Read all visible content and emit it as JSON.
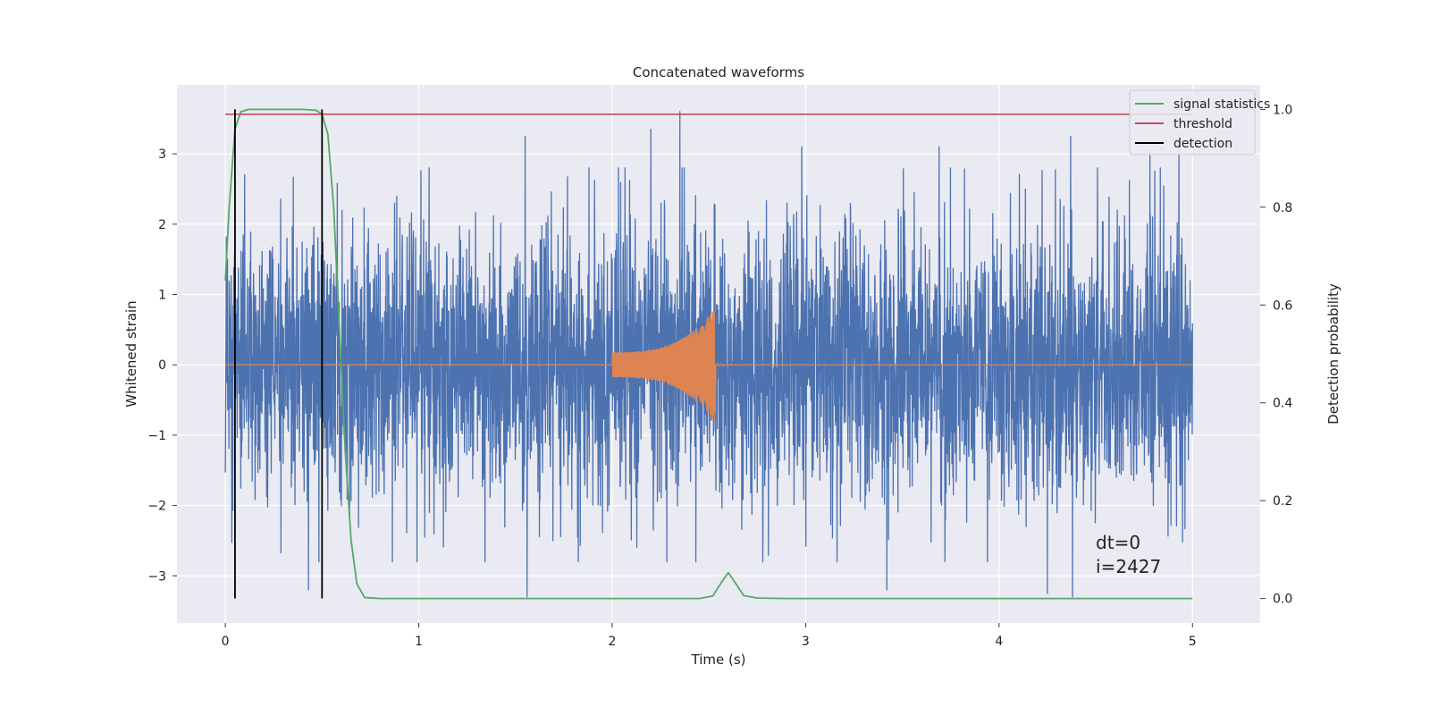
{
  "chart_data": {
    "type": "line",
    "title": "Concatenated waveforms",
    "xlabel": "Time (s)",
    "ylabel": "Whitened strain",
    "y2label": "Detection probability",
    "xlim": [
      -0.25,
      5.35
    ],
    "ylim": [
      -3.67,
      3.98
    ],
    "y2lim": [
      -0.05,
      1.05
    ],
    "xticks": [
      0,
      1,
      2,
      3,
      4,
      5
    ],
    "xtick_labels": [
      "0",
      "1",
      "2",
      "3",
      "4",
      "5"
    ],
    "yticks": [
      -3,
      -2,
      -1,
      0,
      1,
      2,
      3
    ],
    "ytick_labels": [
      "−3",
      "−2",
      "−1",
      "0",
      "1",
      "2",
      "3"
    ],
    "y2ticks": [
      0.0,
      0.2,
      0.4,
      0.6,
      0.8,
      1.0
    ],
    "y2tick_labels": [
      "0.0",
      "0.2",
      "0.4",
      "0.6",
      "0.8",
      "1.0"
    ],
    "grid": true,
    "legend_position": "top-right",
    "legend": [
      "signal statistics",
      "threshold",
      "detection"
    ],
    "series": [
      {
        "kind": "noise",
        "axis": "left",
        "color": "#4c72b0",
        "x_range": [
          0,
          5
        ],
        "peaks": [
          [
            0.1,
            2.7
          ],
          [
            0.43,
            -3.2
          ],
          [
            1.56,
            -3.3
          ],
          [
            1.55,
            3.25
          ],
          [
            2.35,
            3.6
          ],
          [
            2.2,
            3.35
          ],
          [
            2.98,
            3.1
          ],
          [
            3.42,
            -3.2
          ],
          [
            3.69,
            3.1
          ],
          [
            4.25,
            -3.25
          ],
          [
            4.37,
            3.25
          ],
          [
            4.38,
            -3.3
          ],
          [
            4.93,
            3.05
          ],
          [
            4.78,
            3.03
          ]
        ]
      },
      {
        "kind": "chirp",
        "axis": "left",
        "color": "#dd8452",
        "x_range": [
          0,
          5
        ],
        "chirp_start": 2.0,
        "chirp_end": 2.53,
        "amp_start": 0.18,
        "amp_end": 0.8,
        "min_end": -0.68
      },
      {
        "name": "signal statistics",
        "axis": "right",
        "color": "#55a868",
        "x": [
          0.0,
          0.02,
          0.05,
          0.08,
          0.12,
          0.2,
          0.3,
          0.4,
          0.47,
          0.5,
          0.53,
          0.56,
          0.59,
          0.62,
          0.65,
          0.68,
          0.72,
          0.8,
          1.0,
          2.0,
          2.45,
          2.52,
          2.56,
          2.6,
          2.64,
          2.68,
          2.75,
          2.9,
          3.5,
          4.0,
          5.0
        ],
        "y": [
          0.65,
          0.8,
          0.96,
          0.995,
          1.0,
          1.0,
          1.0,
          1.0,
          0.998,
          0.99,
          0.95,
          0.8,
          0.55,
          0.3,
          0.12,
          0.03,
          0.002,
          0.0,
          0.0,
          0.0,
          0.0,
          0.005,
          0.03,
          0.053,
          0.03,
          0.006,
          0.001,
          0.0,
          0.0,
          0.0,
          0.0
        ]
      },
      {
        "name": "threshold",
        "axis": "right",
        "color": "#c44e52",
        "x": [
          0,
          5
        ],
        "y": [
          0.99,
          0.99
        ]
      },
      {
        "name": "detection",
        "axis": "right",
        "color": "#000000",
        "vlines": [
          0.05,
          0.5
        ],
        "ymin": 0.0,
        "ymax": 1.0
      }
    ],
    "annotations": [
      {
        "text": "dt=0",
        "x": 4.5,
        "y": -2.55
      },
      {
        "text": "i=2427",
        "x": 4.5,
        "y": -2.9
      }
    ]
  }
}
